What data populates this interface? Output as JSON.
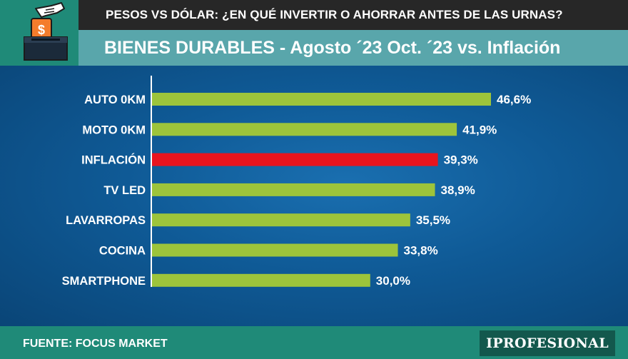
{
  "header": {
    "supertitle": "PESOS VS DÓLAR: ¿EN QUÉ INVERTIR O AHORRAR ANTES DE LAS URNAS?",
    "title": "BIENES DURABLES - Agosto ´23 Oct. ´23 vs. Inflación",
    "icon": "hand-coin-ballot-box-icon"
  },
  "footer": {
    "source": "FUENTE: FOCUS MARKET",
    "brand": "IPROFESIONAL"
  },
  "colors": {
    "background": "#0b4f86",
    "bar": "#9dc43b",
    "bar_highlight": "#e8141e",
    "header_dark": "#272727",
    "title_band": "#59a6ab",
    "accent": "#1f8a78",
    "coin": "#f47c2c"
  },
  "chart_data": {
    "type": "bar",
    "orientation": "horizontal",
    "title": "BIENES DURABLES - Agosto ´23 Oct. ´23 vs. Inflación",
    "categories": [
      "AUTO 0KM",
      "MOTO 0KM",
      "INFLACIÓN",
      "TV LED",
      "LAVARROPAS",
      "COCINA",
      "SMARTPHONE"
    ],
    "values": [
      46.6,
      41.9,
      39.3,
      38.9,
      35.5,
      33.8,
      30.0
    ],
    "labels": [
      "46,6%",
      "41,9%",
      "39,3%",
      "38,9%",
      "35,5%",
      "33,8%",
      "30,0%"
    ],
    "highlight": "INFLACIÓN",
    "unit": "%",
    "xlim": [
      0,
      46.6
    ],
    "grid": false,
    "xlabel": "",
    "ylabel": ""
  }
}
